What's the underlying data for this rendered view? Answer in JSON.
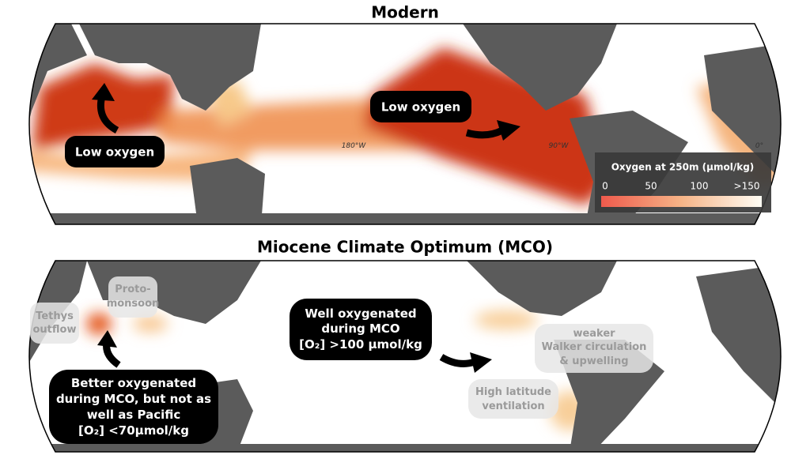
{
  "panels": [
    {
      "title": "Modern",
      "callouts": [
        [
          "Low oxygen"
        ],
        [
          "Low oxygen"
        ]
      ],
      "longitudes": [
        "180°W",
        "90°W",
        "0°"
      ],
      "legend": {
        "title": "Oxygen at 250m (µmol/kg)",
        "ticks": [
          "0",
          "50",
          "100",
          ">150"
        ]
      }
    },
    {
      "title": "Miocene Climate Optimum (MCO)",
      "callouts": [
        [
          "Well oxygenated",
          "during MCO",
          "[O₂] >100 µmol/kg"
        ],
        [
          "Better oxygenated",
          "during MCO, but not as",
          "well as Pacific",
          "[O₂] <70µmol/kg"
        ]
      ],
      "notes": [
        [
          "Tethys",
          "outflow"
        ],
        [
          "Proto-",
          "monsoon"
        ],
        [
          "weaker",
          "Walker circulation",
          "& upwelling"
        ],
        [
          "High latitude",
          "ventilation"
        ]
      ]
    }
  ]
}
